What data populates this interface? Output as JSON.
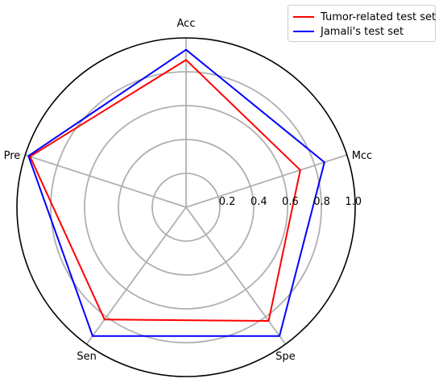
{
  "chart_data": {
    "type": "radar",
    "axes": [
      "Acc",
      "Mcc",
      "Spe",
      "Sen",
      "Pre"
    ],
    "rlim": [
      0,
      1.0
    ],
    "radial_ticks": [
      0.2,
      0.4,
      0.6,
      0.8,
      1.0
    ],
    "radial_tick_labels": [
      "0.2",
      "0.4",
      "0.6",
      "0.8",
      "1.0"
    ],
    "grid": true,
    "legend_position": "top-right",
    "series": [
      {
        "name": "Tumor-related test set",
        "color": "#ff0000",
        "values": [
          0.87,
          0.71,
          0.83,
          0.82,
          0.97
        ]
      },
      {
        "name": "Jamali's test set",
        "color": "#0000ff",
        "values": [
          0.93,
          0.86,
          0.94,
          0.94,
          0.98
        ]
      }
    ]
  }
}
